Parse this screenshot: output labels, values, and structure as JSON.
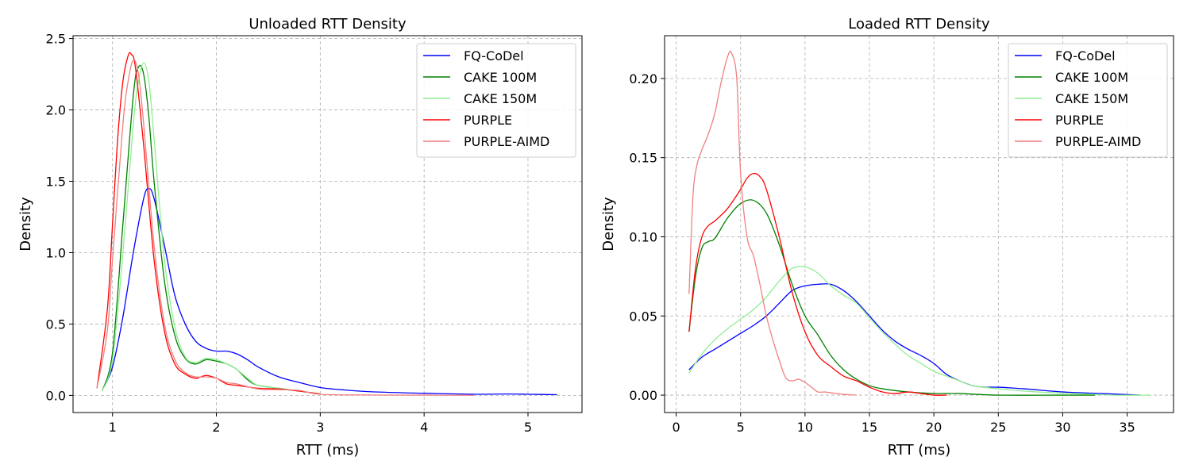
{
  "chart_data": [
    {
      "type": "line",
      "title": "Unloaded RTT Density",
      "xlabel": "RTT (ms)",
      "ylabel": "Density",
      "xlim": [
        0.62,
        5.52
      ],
      "ylim": [
        -0.12,
        2.52
      ],
      "xticks": [
        1,
        2,
        3,
        4,
        5
      ],
      "yticks": [
        0.0,
        0.5,
        1.0,
        1.5,
        2.0,
        2.5
      ],
      "xtick_labels": [
        "1",
        "2",
        "3",
        "4",
        "5"
      ],
      "ytick_labels": [
        "0.0",
        "0.5",
        "1.0",
        "1.5",
        "2.0",
        "2.5"
      ],
      "grid": true,
      "legend_position": "top-right",
      "series": [
        {
          "name": "FQ-CoDel",
          "color": "#0000ff",
          "x": [
            0.92,
            1.0,
            1.1,
            1.2,
            1.3,
            1.35,
            1.4,
            1.5,
            1.6,
            1.7,
            1.8,
            1.9,
            2.0,
            2.1,
            2.2,
            2.3,
            2.4,
            2.6,
            2.8,
            3.0,
            3.2,
            3.5,
            4.0,
            4.5,
            4.8,
            5.0,
            5.28
          ],
          "y": [
            0.06,
            0.2,
            0.55,
            1.0,
            1.38,
            1.45,
            1.38,
            1.05,
            0.7,
            0.5,
            0.38,
            0.33,
            0.31,
            0.31,
            0.29,
            0.25,
            0.2,
            0.13,
            0.09,
            0.055,
            0.04,
            0.025,
            0.015,
            0.008,
            0.01,
            0.008,
            0.005
          ]
        },
        {
          "name": "CAKE 100M",
          "color": "#008000",
          "x": [
            0.9,
            1.0,
            1.1,
            1.2,
            1.25,
            1.3,
            1.35,
            1.4,
            1.5,
            1.6,
            1.7,
            1.8,
            1.9,
            2.0,
            2.1,
            2.2,
            2.3,
            2.4,
            2.6,
            2.8,
            3.0
          ],
          "y": [
            0.03,
            0.3,
            1.2,
            2.1,
            2.3,
            2.25,
            1.95,
            1.5,
            0.8,
            0.42,
            0.26,
            0.22,
            0.25,
            0.24,
            0.22,
            0.18,
            0.11,
            0.07,
            0.05,
            0.03,
            0.01
          ]
        },
        {
          "name": "CAKE 150M",
          "color": "#90ee90",
          "x": [
            0.9,
            1.0,
            1.1,
            1.2,
            1.25,
            1.3,
            1.35,
            1.4,
            1.5,
            1.6,
            1.7,
            1.8,
            1.9,
            2.0,
            2.1,
            2.2,
            2.3,
            2.4,
            2.6,
            2.8,
            3.0
          ],
          "y": [
            0.03,
            0.25,
            1.0,
            1.9,
            2.2,
            2.33,
            2.2,
            1.8,
            0.95,
            0.48,
            0.27,
            0.23,
            0.26,
            0.25,
            0.22,
            0.18,
            0.12,
            0.07,
            0.05,
            0.03,
            0.01
          ]
        },
        {
          "name": "PURPLE",
          "color": "#ff0000",
          "x": [
            0.85,
            0.95,
            1.0,
            1.05,
            1.1,
            1.15,
            1.18,
            1.22,
            1.3,
            1.4,
            1.5,
            1.6,
            1.7,
            1.8,
            1.9,
            2.0,
            2.1,
            2.2,
            2.4,
            2.6,
            2.8,
            3.0
          ],
          "y": [
            0.05,
            0.6,
            1.2,
            1.8,
            2.2,
            2.38,
            2.39,
            2.3,
            1.75,
            0.95,
            0.45,
            0.22,
            0.15,
            0.12,
            0.14,
            0.12,
            0.08,
            0.07,
            0.05,
            0.045,
            0.03,
            0.01
          ]
        },
        {
          "name": "PURPLE-AIMD",
          "color": "#f08080",
          "x": [
            0.85,
            0.95,
            1.0,
            1.1,
            1.15,
            1.2,
            1.25,
            1.3,
            1.4,
            1.5,
            1.6,
            1.7,
            1.8,
            1.9,
            2.0,
            2.1,
            2.2,
            2.4,
            2.6,
            2.8,
            3.0,
            3.5,
            4.0,
            4.48
          ],
          "y": [
            0.05,
            0.45,
            0.95,
            1.9,
            2.2,
            2.35,
            2.25,
            1.9,
            1.05,
            0.5,
            0.25,
            0.16,
            0.13,
            0.13,
            0.12,
            0.09,
            0.08,
            0.045,
            0.04,
            0.035,
            0.008,
            0.003,
            0.002,
            0.001
          ]
        }
      ]
    },
    {
      "type": "line",
      "title": "Loaded RTT Density",
      "xlabel": "RTT (ms)",
      "ylabel": "Density",
      "xlim": [
        -0.9,
        38.6
      ],
      "ylim": [
        -0.011,
        0.227
      ],
      "xticks": [
        0,
        5,
        10,
        15,
        20,
        25,
        30,
        35
      ],
      "yticks": [
        0.0,
        0.05,
        0.1,
        0.15,
        0.2
      ],
      "xtick_labels": [
        "0",
        "5",
        "10",
        "15",
        "20",
        "25",
        "30",
        "35"
      ],
      "ytick_labels": [
        "0.00",
        "0.05",
        "0.10",
        "0.15",
        "0.20"
      ],
      "grid": true,
      "legend_position": "top-right",
      "series": [
        {
          "name": "FQ-CoDel",
          "color": "#0000ff",
          "x": [
            1.0,
            2.0,
            3.0,
            4.0,
            5.0,
            6.0,
            7.0,
            8.0,
            9.0,
            10.0,
            11.0,
            12.0,
            13.0,
            14.0,
            15.0,
            16.0,
            17.0,
            18.0,
            19.0,
            20.0,
            21.0,
            22.0,
            23.0,
            24.0,
            25.0,
            27.0,
            30.0,
            33.0,
            36.0
          ],
          "y": [
            0.016,
            0.024,
            0.029,
            0.034,
            0.039,
            0.044,
            0.05,
            0.058,
            0.066,
            0.069,
            0.07,
            0.07,
            0.066,
            0.059,
            0.05,
            0.041,
            0.034,
            0.029,
            0.025,
            0.02,
            0.013,
            0.009,
            0.006,
            0.005,
            0.005,
            0.004,
            0.002,
            0.001,
            0.0
          ]
        },
        {
          "name": "CAKE 100M",
          "color": "#008000",
          "x": [
            1.0,
            1.5,
            2.0,
            2.5,
            3.0,
            4.0,
            5.0,
            6.0,
            7.0,
            8.0,
            9.0,
            10.0,
            11.0,
            12.0,
            13.0,
            14.0,
            15.0,
            16.0,
            18.0,
            20.0,
            22.0,
            25.0,
            30.0,
            32.5
          ],
          "y": [
            0.04,
            0.075,
            0.093,
            0.097,
            0.099,
            0.112,
            0.121,
            0.123,
            0.115,
            0.095,
            0.07,
            0.05,
            0.038,
            0.025,
            0.016,
            0.01,
            0.006,
            0.004,
            0.002,
            0.001,
            0.001,
            0.0,
            0.0,
            0.0
          ]
        },
        {
          "name": "CAKE 150M",
          "color": "#90ee90",
          "x": [
            1.0,
            2.0,
            3.0,
            4.0,
            5.0,
            6.0,
            7.0,
            8.0,
            9.0,
            10.0,
            11.0,
            12.0,
            13.0,
            14.0,
            15.0,
            16.0,
            17.0,
            18.0,
            19.0,
            20.0,
            21.0,
            22.0,
            23.0,
            25.0,
            28.0,
            31.0,
            34.0,
            36.8
          ],
          "y": [
            0.014,
            0.026,
            0.035,
            0.042,
            0.048,
            0.054,
            0.062,
            0.072,
            0.08,
            0.081,
            0.077,
            0.069,
            0.063,
            0.058,
            0.049,
            0.04,
            0.032,
            0.025,
            0.02,
            0.015,
            0.012,
            0.009,
            0.006,
            0.004,
            0.002,
            0.001,
            0.0,
            0.0
          ]
        },
        {
          "name": "PURPLE",
          "color": "#ff0000",
          "x": [
            1.0,
            1.5,
            2.0,
            2.5,
            3.0,
            4.0,
            5.0,
            5.5,
            6.0,
            6.5,
            7.0,
            8.0,
            9.0,
            10.0,
            11.0,
            12.0,
            13.0,
            14.0,
            15.0,
            16.0,
            17.0,
            18.0,
            19.0,
            20.0,
            21.0
          ],
          "y": [
            0.04,
            0.08,
            0.1,
            0.107,
            0.11,
            0.118,
            0.13,
            0.137,
            0.14,
            0.138,
            0.13,
            0.1,
            0.065,
            0.04,
            0.025,
            0.018,
            0.012,
            0.009,
            0.005,
            0.002,
            0.001,
            0.002,
            0.001,
            0.0,
            0.0
          ]
        },
        {
          "name": "PURPLE-AIMD",
          "color": "#f08080",
          "x": [
            1.0,
            1.3,
            1.6,
            2.0,
            2.5,
            3.0,
            3.5,
            4.0,
            4.3,
            4.7,
            5.0,
            5.5,
            6.0,
            6.5,
            7.0,
            7.5,
            8.0,
            8.5,
            9.0,
            9.5,
            10.0,
            10.5,
            11.0,
            11.5,
            12.0,
            13.0,
            14.0
          ],
          "y": [
            0.064,
            0.125,
            0.145,
            0.155,
            0.165,
            0.178,
            0.198,
            0.214,
            0.216,
            0.2,
            0.14,
            0.1,
            0.088,
            0.07,
            0.05,
            0.035,
            0.022,
            0.011,
            0.009,
            0.01,
            0.008,
            0.005,
            0.002,
            0.002,
            0.0015,
            0.0005,
            0.0
          ]
        }
      ]
    }
  ]
}
